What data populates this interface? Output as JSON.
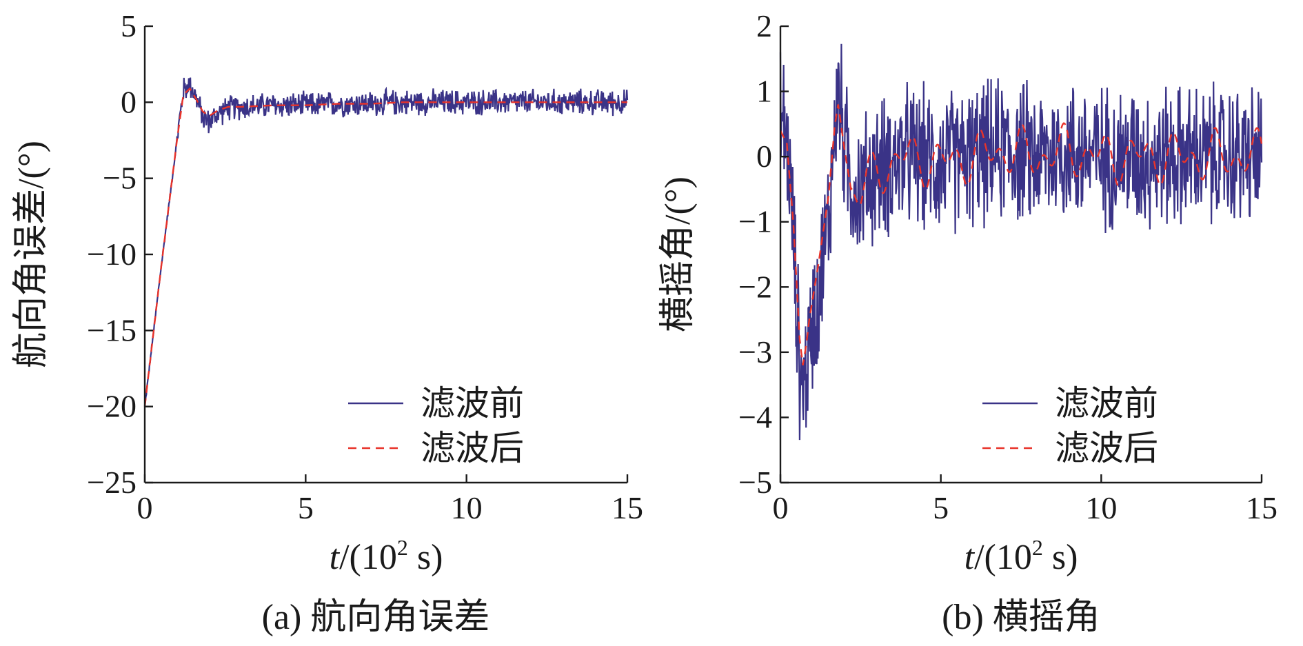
{
  "chart_data": [
    {
      "type": "line",
      "caption": "(a) 航向角误差",
      "xlabel": {
        "italic": "t",
        "text": "/(10",
        "sup": "2",
        "tail": " s)"
      },
      "ylabel": "航向角误差/(°)",
      "xlim": [
        0,
        15
      ],
      "ylim": [
        -25,
        5
      ],
      "xticks": [
        0,
        5,
        10,
        15
      ],
      "yticks": [
        5,
        0,
        -5,
        -10,
        -15,
        -20,
        -25
      ],
      "x_tick_labels": [
        "0",
        "5",
        "10",
        "15"
      ],
      "y_tick_labels": [
        "5",
        "0",
        "−5",
        "−10",
        "−15",
        "−20",
        "−25"
      ],
      "legend_position": "bottom-right",
      "series": [
        {
          "name": "滤波前",
          "color": "#3a3387",
          "style": "solid",
          "x": [
            0,
            0.5,
            1.0,
            1.2,
            1.4,
            1.6,
            1.8,
            2.0,
            2.3,
            2.6,
            3.0,
            4,
            5,
            6,
            7,
            8,
            9,
            10,
            11,
            12,
            13,
            14,
            15
          ],
          "y": [
            -20,
            -11,
            -2.5,
            0.8,
            1.2,
            0.3,
            -1.0,
            -1.3,
            -0.7,
            -0.4,
            -0.3,
            -0.2,
            -0.2,
            -0.1,
            -0.1,
            0,
            0,
            0,
            0,
            0,
            0,
            0,
            0
          ],
          "noise_amplitude": 1.0
        },
        {
          "name": "滤波后",
          "color": "#e8332a",
          "style": "dashed",
          "x": [
            0,
            0.5,
            1.0,
            1.2,
            1.4,
            1.6,
            1.8,
            2.0,
            2.3,
            2.6,
            3.0,
            4,
            5,
            6,
            7,
            8,
            9,
            10,
            11,
            12,
            13,
            14,
            15
          ],
          "y": [
            -20,
            -11,
            -2.5,
            0.5,
            0.9,
            0.2,
            -0.6,
            -0.9,
            -0.5,
            -0.3,
            -0.3,
            -0.2,
            -0.2,
            -0.1,
            -0.1,
            0,
            0,
            0,
            0,
            0,
            0,
            0,
            0
          ]
        }
      ]
    },
    {
      "type": "line",
      "caption": "(b) 横摇角",
      "xlabel": {
        "italic": "t",
        "text": "/(10",
        "sup": "2",
        "tail": " s)"
      },
      "ylabel": "横摇角/(°)",
      "xlim": [
        0,
        15
      ],
      "ylim": [
        -5,
        2
      ],
      "xticks": [
        0,
        5,
        10,
        15
      ],
      "yticks": [
        2,
        1,
        0,
        -1,
        -2,
        -3,
        -4,
        -5
      ],
      "x_tick_labels": [
        "0",
        "5",
        "10",
        "15"
      ],
      "y_tick_labels": [
        "2",
        "1",
        "0",
        "−1",
        "−2",
        "−3",
        "−4",
        "−5"
      ],
      "legend_position": "bottom-right",
      "series": [
        {
          "name": "滤波前",
          "color": "#3a3387",
          "style": "solid",
          "x": [
            0,
            0.2,
            0.4,
            0.6,
            0.7,
            0.8,
            0.9,
            1.0,
            1.2,
            1.5,
            1.7,
            1.8,
            2.0,
            2.2,
            2.5,
            3,
            4,
            5,
            6,
            7,
            8,
            9,
            10,
            11,
            12,
            13,
            14,
            15
          ],
          "y": [
            0.6,
            0.3,
            -1.2,
            -3.2,
            -3.6,
            -3.3,
            -2.9,
            -2.6,
            -2.0,
            -1.0,
            0.5,
            1.0,
            0.2,
            -0.4,
            -0.5,
            -0.2,
            0,
            -0.1,
            0,
            0.1,
            0,
            0.1,
            0,
            0,
            0,
            0,
            0,
            0
          ],
          "noise_amplitude": 1.3
        },
        {
          "name": "滤波后",
          "color": "#e8332a",
          "style": "dashed",
          "x": [
            0,
            0.2,
            0.4,
            0.6,
            0.7,
            0.8,
            0.9,
            1.0,
            1.2,
            1.5,
            1.7,
            1.8,
            2.0,
            2.2,
            2.5,
            3,
            4,
            5,
            6,
            7,
            8,
            9,
            10,
            11,
            12,
            13,
            14,
            15
          ],
          "y": [
            0.4,
            0.2,
            -1.0,
            -2.8,
            -3.2,
            -2.9,
            -2.5,
            -2.2,
            -1.6,
            -0.6,
            0.5,
            0.8,
            0.1,
            -0.5,
            -0.6,
            -0.2,
            0,
            -0.1,
            0,
            0.1,
            0,
            0.1,
            0,
            0,
            0,
            0,
            0,
            0
          ],
          "oscillation_amplitude": 0.45
        }
      ]
    }
  ]
}
